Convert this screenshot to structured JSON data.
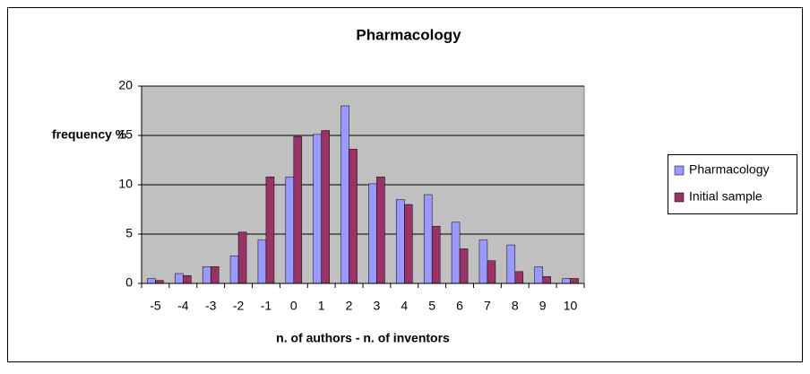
{
  "chart_data": {
    "type": "bar",
    "title": "Pharmacology",
    "xlabel": "n. of authors - n. of inventors",
    "ylabel": "frequency %",
    "categories": [
      "-5",
      "-4",
      "-3",
      "-2",
      "-1",
      "0",
      "1",
      "2",
      "3",
      "4",
      "5",
      "6",
      "7",
      "8",
      "9",
      "10"
    ],
    "series": [
      {
        "name": "Pharmacology",
        "color": "#9999ff",
        "values": [
          0.5,
          1.0,
          1.7,
          2.8,
          4.4,
          10.8,
          15.1,
          18.0,
          10.1,
          8.5,
          9.0,
          6.2,
          4.4,
          3.9,
          1.7,
          0.5
        ]
      },
      {
        "name": "Initial sample",
        "color": "#993366",
        "values": [
          0.3,
          0.8,
          1.7,
          5.2,
          10.8,
          14.9,
          15.5,
          13.6,
          10.8,
          8.0,
          5.8,
          3.5,
          2.3,
          1.2,
          0.7,
          0.5
        ]
      }
    ],
    "ylim": [
      0,
      20
    ],
    "yticks": [
      0,
      5,
      10,
      15,
      20
    ],
    "grid": true,
    "legend": "right"
  }
}
